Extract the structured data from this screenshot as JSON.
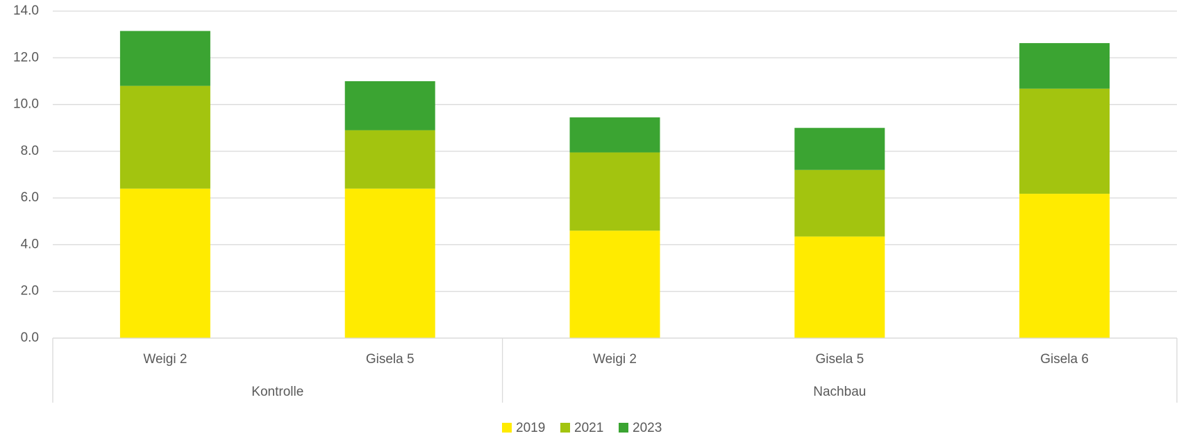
{
  "chart_data": {
    "type": "stacked_bar",
    "categories": [
      "Weigi 2",
      "Gisela 5",
      "Weigi 2",
      "Gisela 5",
      "Gisela 6"
    ],
    "groups": [
      "Kontrolle",
      "Nachbau"
    ],
    "group_sizes": [
      2,
      3
    ],
    "series": [
      {
        "name": "2019",
        "color": "#ffeb00",
        "values": [
          6.4,
          6.4,
          4.6,
          4.35,
          6.18
        ]
      },
      {
        "name": "2021",
        "color": "#a3c40f",
        "values": [
          4.4,
          2.5,
          3.35,
          2.85,
          4.5
        ]
      },
      {
        "name": "2023",
        "color": "#3ba432",
        "values": [
          2.35,
          2.1,
          1.5,
          1.8,
          1.95
        ]
      }
    ],
    "ylim": [
      0,
      14
    ],
    "yticks": [
      {
        "value": 0,
        "label": "0.0"
      },
      {
        "value": 2,
        "label": "2.0"
      },
      {
        "value": 4,
        "label": "4.0"
      },
      {
        "value": 6,
        "label": "6.0"
      },
      {
        "value": 8,
        "label": "8.0"
      },
      {
        "value": 10,
        "label": "10.0"
      },
      {
        "value": 12,
        "label": "12.0"
      },
      {
        "value": 14,
        "label": "14.0"
      }
    ],
    "grid": true,
    "legend": "bottom"
  }
}
